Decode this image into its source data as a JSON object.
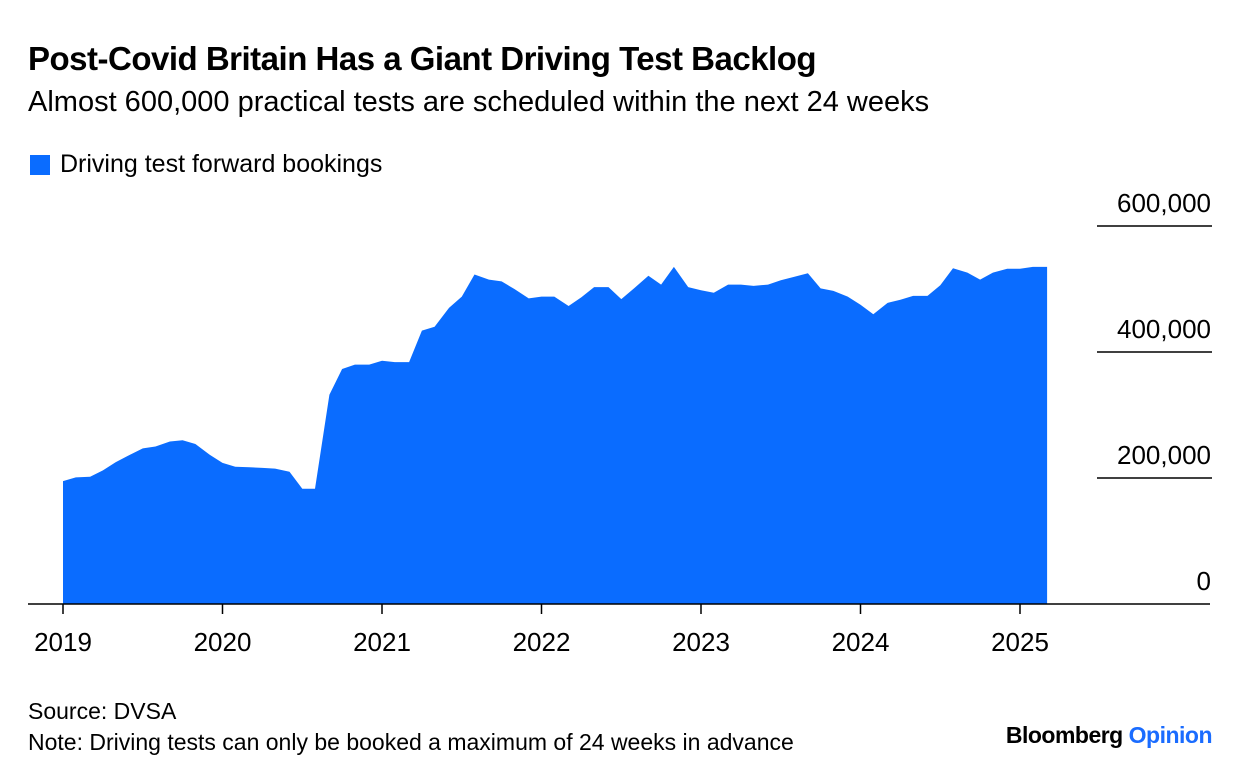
{
  "title": "Post-Covid Britain Has a Giant Driving Test Backlog",
  "subtitle": "Almost 600,000 practical tests are scheduled within the next 24 weeks",
  "source": "Source: DVSA",
  "note": "Note: Driving tests can only be booked a maximum of 24 weeks in advance",
  "brand": {
    "name": "Bloomberg",
    "section": "Opinion",
    "section_color": "#1a6cff"
  },
  "colors": {
    "series": "#0a6cff",
    "axis": "#000000",
    "grid": "#000000"
  },
  "chart_data": {
    "type": "area",
    "title": "Post-Covid Britain Has a Giant Driving Test Backlog",
    "xlabel": "",
    "ylabel": "",
    "ylim": [
      0,
      600000
    ],
    "yticks": [
      0,
      200000,
      400000,
      600000
    ],
    "ytick_labels": [
      "0",
      "200,000",
      "400,000",
      "600,000"
    ],
    "xlim": [
      2019.0,
      2026.0
    ],
    "xticks": [
      2019,
      2020,
      2021,
      2022,
      2023,
      2024,
      2025
    ],
    "xtick_labels": [
      "2019",
      "2020",
      "2021",
      "2022",
      "2023",
      "2024",
      "2025"
    ],
    "legend": "top-left",
    "series": [
      {
        "name": "Driving test forward bookings",
        "x": [
          2019.0,
          2019.08,
          2019.17,
          2019.25,
          2019.33,
          2019.42,
          2019.5,
          2019.58,
          2019.67,
          2019.75,
          2019.83,
          2019.92,
          2020.0,
          2020.08,
          2020.17,
          2020.25,
          2020.33,
          2020.42,
          2020.5,
          2020.58,
          2020.67,
          2020.75,
          2020.83,
          2020.92,
          2021.0,
          2021.08,
          2021.17,
          2021.25,
          2021.33,
          2021.42,
          2021.5,
          2021.58,
          2021.67,
          2021.75,
          2021.83,
          2021.92,
          2022.0,
          2022.08,
          2022.17,
          2022.25,
          2022.33,
          2022.42,
          2022.5,
          2022.58,
          2022.67,
          2022.75,
          2022.83,
          2022.92,
          2023.0,
          2023.08,
          2023.17,
          2023.25,
          2023.33,
          2023.42,
          2023.5,
          2023.58,
          2023.67,
          2023.75,
          2023.83,
          2023.92,
          2024.0,
          2024.08,
          2024.17,
          2024.25,
          2024.33,
          2024.42,
          2024.5,
          2024.58,
          2024.67,
          2024.75,
          2024.83,
          2024.92,
          2025.0,
          2025.08,
          2025.17
        ],
        "values": [
          195000,
          201000,
          202000,
          212000,
          225000,
          237000,
          247000,
          250000,
          258000,
          260000,
          254000,
          237000,
          224000,
          218000,
          217000,
          216000,
          215000,
          210000,
          183000,
          183000,
          332000,
          373000,
          380000,
          380000,
          386000,
          384000,
          384000,
          434000,
          440000,
          470000,
          488000,
          523000,
          515000,
          512000,
          500000,
          485000,
          488000,
          488000,
          473000,
          487000,
          503000,
          503000,
          484000,
          501000,
          521000,
          507000,
          535000,
          503000,
          498000,
          494000,
          507000,
          507000,
          505000,
          507000,
          514000,
          519000,
          525000,
          501000,
          497000,
          488000,
          475000,
          460000,
          478000,
          483000,
          489000,
          489000,
          506000,
          533000,
          526000,
          515000,
          526000,
          532000,
          532000,
          535000,
          535000
        ]
      }
    ]
  }
}
